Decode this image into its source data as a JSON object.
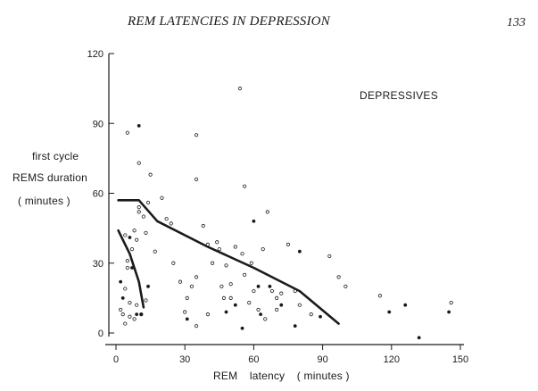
{
  "page": {
    "running_title": "REM LATENCIES IN DEPRESSION",
    "page_number": "133"
  },
  "chart_data": {
    "type": "scatter",
    "group_label": "DEPRESSIVES",
    "ylabel_lines": [
      "first  cycle",
      "REMS duration",
      "( minutes )"
    ],
    "xlabel_parts": [
      "REM",
      "latency",
      "( minutes )"
    ],
    "xlim": [
      0,
      150
    ],
    "ylim": [
      0,
      120
    ],
    "xticks": [
      0,
      30,
      60,
      90,
      120,
      150
    ],
    "yticks": [
      0,
      30,
      60,
      90,
      120
    ],
    "grid": false,
    "series": [
      {
        "marker": "open",
        "points": [
          [
            2,
            10
          ],
          [
            3,
            8
          ],
          [
            4,
            19
          ],
          [
            5,
            31
          ],
          [
            4,
            42
          ],
          [
            5,
            28
          ],
          [
            6,
            13
          ],
          [
            7,
            36
          ],
          [
            8,
            44
          ],
          [
            9,
            40
          ],
          [
            10,
            54
          ],
          [
            10,
            52
          ],
          [
            12,
            50
          ],
          [
            13,
            43
          ],
          [
            14,
            56
          ],
          [
            15,
            68
          ],
          [
            5,
            86
          ],
          [
            10,
            73
          ],
          [
            4,
            4
          ],
          [
            6,
            7
          ],
          [
            8,
            6
          ],
          [
            9,
            12
          ],
          [
            11,
            8
          ],
          [
            13,
            14
          ],
          [
            17,
            35
          ],
          [
            20,
            58
          ],
          [
            22,
            49
          ],
          [
            24,
            47
          ],
          [
            30,
            9
          ],
          [
            31,
            15
          ],
          [
            33,
            20
          ],
          [
            35,
            24
          ],
          [
            35,
            66
          ],
          [
            35,
            85
          ],
          [
            38,
            46
          ],
          [
            40,
            38
          ],
          [
            42,
            30
          ],
          [
            44,
            39
          ],
          [
            45,
            36
          ],
          [
            46,
            20
          ],
          [
            47,
            15
          ],
          [
            48,
            29
          ],
          [
            50,
            21
          ],
          [
            52,
            37
          ],
          [
            54,
            105
          ],
          [
            55,
            34
          ],
          [
            56,
            25
          ],
          [
            56,
            63
          ],
          [
            58,
            13
          ],
          [
            59,
            30
          ],
          [
            60,
            18
          ],
          [
            62,
            10
          ],
          [
            64,
            36
          ],
          [
            66,
            52
          ],
          [
            68,
            18
          ],
          [
            70,
            15
          ],
          [
            70,
            10
          ],
          [
            72,
            17
          ],
          [
            75,
            38
          ],
          [
            78,
            18
          ],
          [
            85,
            8
          ],
          [
            93,
            33
          ],
          [
            97,
            24
          ],
          [
            100,
            20
          ],
          [
            115,
            16
          ],
          [
            146,
            13
          ],
          [
            35,
            3
          ],
          [
            40,
            8
          ],
          [
            25,
            30
          ],
          [
            28,
            22
          ],
          [
            50,
            15
          ],
          [
            65,
            6
          ],
          [
            80,
            12
          ]
        ]
      },
      {
        "marker": "filled",
        "points": [
          [
            10,
            89
          ],
          [
            2,
            22
          ],
          [
            6,
            41
          ],
          [
            7,
            28
          ],
          [
            11,
            8
          ],
          [
            14,
            20
          ],
          [
            31,
            6
          ],
          [
            48,
            9
          ],
          [
            52,
            12
          ],
          [
            60,
            48
          ],
          [
            62,
            20
          ],
          [
            63,
            8
          ],
          [
            67,
            20
          ],
          [
            72,
            12
          ],
          [
            80,
            35
          ],
          [
            89,
            7
          ],
          [
            119,
            9
          ],
          [
            126,
            12
          ],
          [
            132,
            -2
          ],
          [
            145,
            9
          ],
          [
            9,
            8
          ],
          [
            3,
            15
          ],
          [
            78,
            3
          ],
          [
            55,
            2
          ]
        ]
      }
    ],
    "curves": [
      {
        "points": [
          [
            1,
            57
          ],
          [
            10,
            57
          ],
          [
            18,
            48
          ],
          [
            40,
            37
          ],
          [
            60,
            28
          ],
          [
            80,
            18
          ],
          [
            97,
            4
          ]
        ]
      },
      {
        "points": [
          [
            1,
            44
          ],
          [
            3,
            40
          ],
          [
            6,
            34
          ],
          [
            10,
            22
          ],
          [
            12,
            11
          ]
        ]
      }
    ],
    "colors": {
      "ink": "#1a1a1a",
      "background": "#ffffff"
    }
  }
}
